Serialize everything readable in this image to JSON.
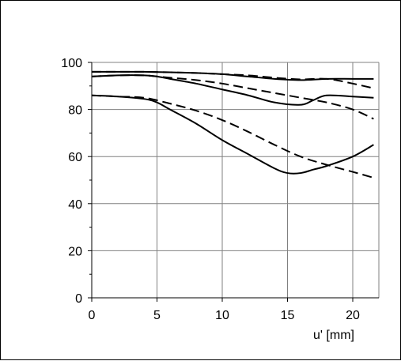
{
  "chart_data": {
    "type": "line",
    "title": "",
    "xlabel": "u' [mm]",
    "ylabel": "",
    "xlim": [
      0,
      22
    ],
    "ylim": [
      0,
      100
    ],
    "x_ticks": [
      0,
      5,
      10,
      15,
      20
    ],
    "y_ticks": [
      0,
      20,
      40,
      60,
      80,
      100
    ],
    "grid": true,
    "legend": "none",
    "series": [
      {
        "style": "solid",
        "x": [
          0,
          2,
          4,
          6,
          8,
          10,
          12,
          14,
          16,
          18,
          20,
          21.6
        ],
        "y": [
          96,
          96,
          96,
          95.8,
          95.5,
          95,
          94,
          93,
          92.5,
          93,
          93,
          93
        ]
      },
      {
        "style": "dashed",
        "x": [
          0,
          2,
          4,
          6,
          8,
          10,
          12,
          14,
          16,
          18,
          20,
          21.6
        ],
        "y": [
          96,
          96,
          96,
          95.8,
          95.5,
          95,
          94.5,
          93.5,
          92.8,
          93,
          91,
          89
        ]
      },
      {
        "style": "solid",
        "x": [
          0,
          2,
          4,
          5,
          6,
          8,
          10,
          12,
          14,
          16,
          17,
          18,
          20,
          21.6
        ],
        "y": [
          94,
          94.5,
          94.5,
          94,
          93,
          91,
          88.5,
          86,
          83,
          82,
          84,
          86,
          85.5,
          85
        ]
      },
      {
        "style": "dashed",
        "x": [
          0,
          2,
          4,
          6,
          8,
          10,
          12,
          14,
          16,
          18,
          20,
          21.6
        ],
        "y": [
          94,
          94.5,
          94.5,
          93.5,
          92.5,
          91,
          89,
          87,
          85,
          83,
          80,
          76
        ]
      },
      {
        "style": "solid",
        "x": [
          0,
          2,
          4,
          5,
          6,
          8,
          10,
          12,
          14,
          15,
          16,
          17,
          18,
          20,
          21.6
        ],
        "y": [
          86,
          85.5,
          84.5,
          83,
          80,
          74,
          67,
          61,
          55,
          53,
          53,
          54.5,
          56,
          60,
          65
        ]
      },
      {
        "style": "dashed",
        "x": [
          0,
          2,
          4,
          6,
          8,
          10,
          12,
          14,
          16,
          18,
          20,
          21.6
        ],
        "y": [
          86,
          85.5,
          85,
          82.5,
          79.5,
          75.5,
          70.5,
          65,
          60,
          56.5,
          53.5,
          51
        ]
      }
    ]
  },
  "colors": {
    "grid": "#808080",
    "axis": "#000000",
    "series": "#000000"
  }
}
